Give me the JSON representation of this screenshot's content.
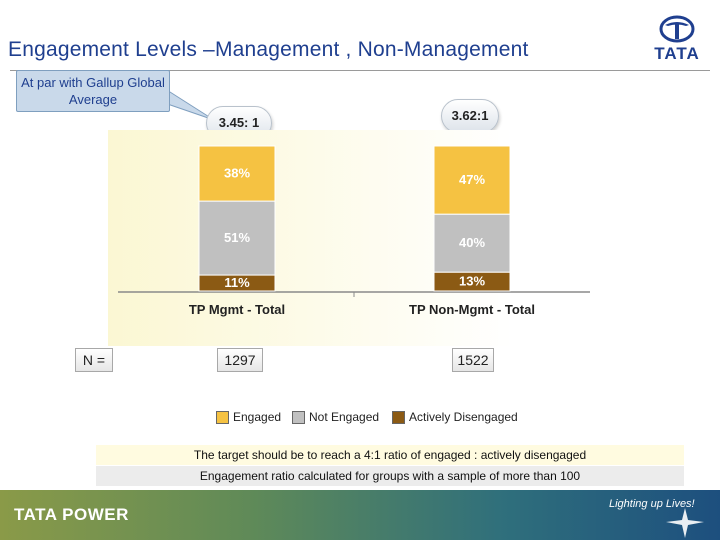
{
  "slide": {
    "title": "Engagement Levels –Management , Non-Management",
    "callout": "At par with Gallup Global Average",
    "logo_text": "TATA",
    "n_label": "N =",
    "notes": [
      "The target should be to reach a 4:1 ratio of engaged : actively disengaged",
      "Engagement ratio calculated for groups with a sample of more than 100"
    ],
    "footer_brand": "TATA POWER",
    "footer_tagline": "Lighting up Lives!",
    "colors": {
      "title": "#1f3f8f",
      "engaged": "#f5c242",
      "not_engaged": "#c0c0c0",
      "actively_disengaged": "#8b5a14"
    }
  },
  "chart_data": {
    "type": "bar",
    "stacked": true,
    "categories": [
      "TP Mgmt - Total",
      "TP Non-Mgmt - Total"
    ],
    "series": [
      {
        "name": "Engaged",
        "values": [
          38,
          47
        ],
        "labels": [
          "38%",
          "47%"
        ]
      },
      {
        "name": "Not Engaged",
        "values": [
          51,
          40
        ],
        "labels": [
          "51%",
          "40%"
        ]
      },
      {
        "name": "Actively Disengaged",
        "values": [
          11,
          13
        ],
        "labels": [
          "11%",
          "13%"
        ]
      }
    ],
    "ratios": [
      "3.45: 1",
      "3.62:1"
    ],
    "n": [
      "1297",
      "1522"
    ],
    "ylim": [
      0,
      100
    ],
    "legend_position": "bottom"
  }
}
